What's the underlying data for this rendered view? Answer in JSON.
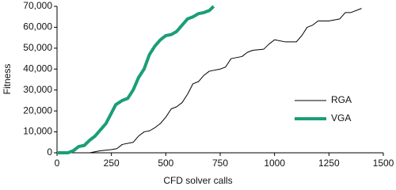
{
  "chart_data": {
    "type": "line",
    "x_label": "CFD solver calls",
    "y_label": "Fitness",
    "xlim": [
      0,
      1500
    ],
    "xticks": [
      0,
      250,
      500,
      750,
      1000,
      1250,
      1500
    ],
    "ylim": [
      0,
      70000
    ],
    "yticks": [
      0,
      {
        "value": 10000,
        "label": "10,000"
      },
      {
        "value": 20000,
        "label": "20,000"
      },
      {
        "value": 30000,
        "label": "30,000"
      },
      {
        "value": 40000,
        "label": "40,000"
      },
      {
        "value": 50000,
        "label": "50,000"
      },
      {
        "value": 60000,
        "label": "60,000"
      },
      {
        "value": 70000,
        "label": "70,000"
      }
    ],
    "legend": "right",
    "series": [
      {
        "name": "RGA",
        "color": "#000000",
        "width": 1,
        "x": [
          0,
          150,
          200,
          250,
          275,
          300,
          350,
          375,
          400,
          425,
          450,
          475,
          500,
          525,
          550,
          575,
          600,
          625,
          650,
          675,
          700,
          750,
          775,
          800,
          850,
          875,
          900,
          950,
          975,
          1000,
          1050,
          1100,
          1125,
          1150,
          1175,
          1200,
          1250,
          1300,
          1325,
          1350,
          1400
        ],
        "values": [
          0,
          0,
          1000,
          1500,
          2000,
          4000,
          5000,
          8000,
          10000,
          10500,
          12000,
          14000,
          17000,
          21000,
          22000,
          24000,
          28000,
          33000,
          34000,
          37000,
          39000,
          40000,
          41000,
          45000,
          46000,
          48000,
          49000,
          49500,
          52000,
          54000,
          53000,
          53000,
          56000,
          60000,
          61000,
          63000,
          63000,
          64000,
          67000,
          67000,
          69000
        ]
      },
      {
        "name": "VGA",
        "color": "#1a9e78",
        "width": 4,
        "x": [
          0,
          50,
          75,
          100,
          125,
          150,
          175,
          200,
          225,
          250,
          270,
          300,
          325,
          350,
          375,
          400,
          425,
          450,
          475,
          500,
          525,
          550,
          575,
          600,
          625,
          650,
          675,
          700,
          720
        ],
        "values": [
          0,
          0,
          1000,
          3000,
          3500,
          6000,
          8000,
          11000,
          14000,
          19000,
          23000,
          25000,
          26000,
          30000,
          36000,
          40000,
          47000,
          51000,
          54000,
          56000,
          56500,
          58000,
          61000,
          64000,
          65000,
          66500,
          67000,
          68000,
          70000
        ]
      }
    ]
  }
}
